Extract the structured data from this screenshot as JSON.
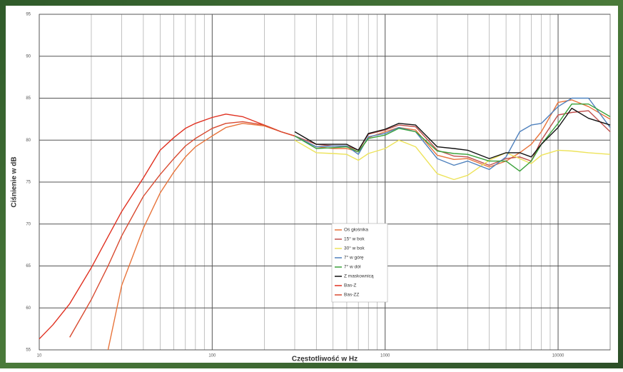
{
  "chart_data": {
    "type": "line",
    "ylabel": "Ciśnienie w dB",
    "xlabel": "Częstotliwość w Hz",
    "log_x": true,
    "grid": true,
    "xlim": [
      10,
      20000
    ],
    "ylim": [
      55,
      95
    ],
    "xticks": [
      10,
      100,
      1000,
      10000
    ],
    "xminor": [
      20,
      30,
      40,
      50,
      60,
      70,
      80,
      90,
      200,
      300,
      400,
      500,
      600,
      700,
      800,
      900,
      2000,
      3000,
      4000,
      5000,
      6000,
      7000,
      8000,
      9000
    ],
    "yticks": [
      55,
      60,
      65,
      70,
      75,
      80,
      85,
      90,
      95
    ],
    "legend": "center",
    "x": [
      10,
      12,
      15,
      20,
      25,
      30,
      40,
      50,
      60,
      70,
      80,
      100,
      120,
      150,
      200,
      250,
      300,
      400,
      500,
      600,
      700,
      800,
      1000,
      1200,
      1500,
      2000,
      2500,
      3000,
      4000,
      5000,
      6000,
      7000,
      8000,
      10000,
      12000,
      15000,
      20000
    ],
    "series": [
      {
        "name": "Oś głośnika",
        "color": "#e8743b",
        "values": [
          null,
          null,
          null,
          null,
          55,
          62.7,
          69.5,
          73.7,
          76.2,
          78,
          79.2,
          80.5,
          81.5,
          82,
          81.7,
          81,
          80.5,
          79.2,
          79.0,
          79.0,
          78.6,
          80.3,
          81,
          81.5,
          81.2,
          78.2,
          77.7,
          77.8,
          76.8,
          77.5,
          78.5,
          79.5,
          81,
          84.5,
          84.8,
          84,
          82.5
        ]
      },
      {
        "name": "15° w bok",
        "color": "#c0504d",
        "values": [
          null,
          null,
          null,
          null,
          null,
          null,
          null,
          null,
          null,
          null,
          null,
          null,
          null,
          null,
          null,
          null,
          80.5,
          79.5,
          79.3,
          79.3,
          78.8,
          80.7,
          81.2,
          81.8,
          81.6,
          78.8,
          78.1,
          78.0,
          77.0,
          77.8,
          78.0,
          77.5,
          80.0,
          83.0,
          83.3,
          83.5,
          81.0
        ]
      },
      {
        "name": "30° w bok",
        "color": "#ede35a",
        "values": [
          null,
          null,
          null,
          null,
          null,
          null,
          null,
          null,
          null,
          null,
          null,
          null,
          null,
          null,
          null,
          null,
          80,
          78.5,
          78.4,
          78.3,
          77.6,
          78.4,
          79,
          80,
          79.2,
          76,
          75.3,
          75.8,
          77.6,
          78.5,
          77.8,
          77.2,
          78.2,
          78.8,
          78.7,
          78.5,
          78.3
        ]
      },
      {
        "name": "7° w górę",
        "color": "#4f81bd",
        "values": [
          null,
          null,
          null,
          null,
          null,
          null,
          null,
          null,
          null,
          null,
          null,
          null,
          null,
          null,
          null,
          null,
          80.5,
          79.2,
          79.3,
          79.3,
          78.3,
          80.4,
          80.8,
          81.5,
          81,
          77.8,
          77,
          77.5,
          76.5,
          78,
          81,
          81.8,
          82,
          84,
          85,
          85,
          81.5
        ]
      },
      {
        "name": "7° w dół",
        "color": "#3aa13a",
        "values": [
          null,
          null,
          null,
          null,
          null,
          null,
          null,
          null,
          null,
          null,
          null,
          null,
          null,
          null,
          null,
          null,
          80.5,
          79.0,
          79.1,
          79.2,
          78.6,
          80.2,
          80.6,
          81.4,
          81,
          78.7,
          78.4,
          78.3,
          77.5,
          77.5,
          76.3,
          77.5,
          79.5,
          82,
          84.3,
          84.3,
          82.8
        ]
      },
      {
        "name": "Z maskownicą",
        "color": "#111111",
        "values": [
          null,
          null,
          null,
          null,
          null,
          null,
          null,
          null,
          null,
          null,
          null,
          null,
          null,
          null,
          null,
          null,
          81,
          79.5,
          79.5,
          79.5,
          78.8,
          80.8,
          81.3,
          82,
          81.8,
          79.2,
          79,
          78.8,
          77.8,
          78.5,
          78.5,
          78,
          79.5,
          81.5,
          83.8,
          82.6,
          81.8
        ]
      },
      {
        "name": "Bas-Z",
        "color": "#e03020",
        "values": [
          56.3,
          58,
          60.5,
          64.8,
          68.5,
          71.5,
          75.5,
          78.8,
          80.3,
          81.4,
          82,
          82.7,
          83.1,
          82.8,
          81.8,
          81,
          80.5,
          null,
          null,
          null,
          null,
          null,
          null,
          null,
          null,
          null,
          null,
          null,
          null,
          null,
          null,
          null,
          null,
          null,
          null,
          null,
          null
        ]
      },
      {
        "name": "Bas-ZZ",
        "color": "#d84a30",
        "values": [
          null,
          null,
          56.5,
          61,
          65,
          68.6,
          73.3,
          75.9,
          77.8,
          79.3,
          80.2,
          81.4,
          82,
          82.2,
          81.8,
          81,
          80.5,
          null,
          null,
          null,
          null,
          null,
          null,
          null,
          null,
          null,
          null,
          null,
          null,
          null,
          null,
          null,
          null,
          null,
          null,
          null,
          null
        ]
      }
    ]
  }
}
